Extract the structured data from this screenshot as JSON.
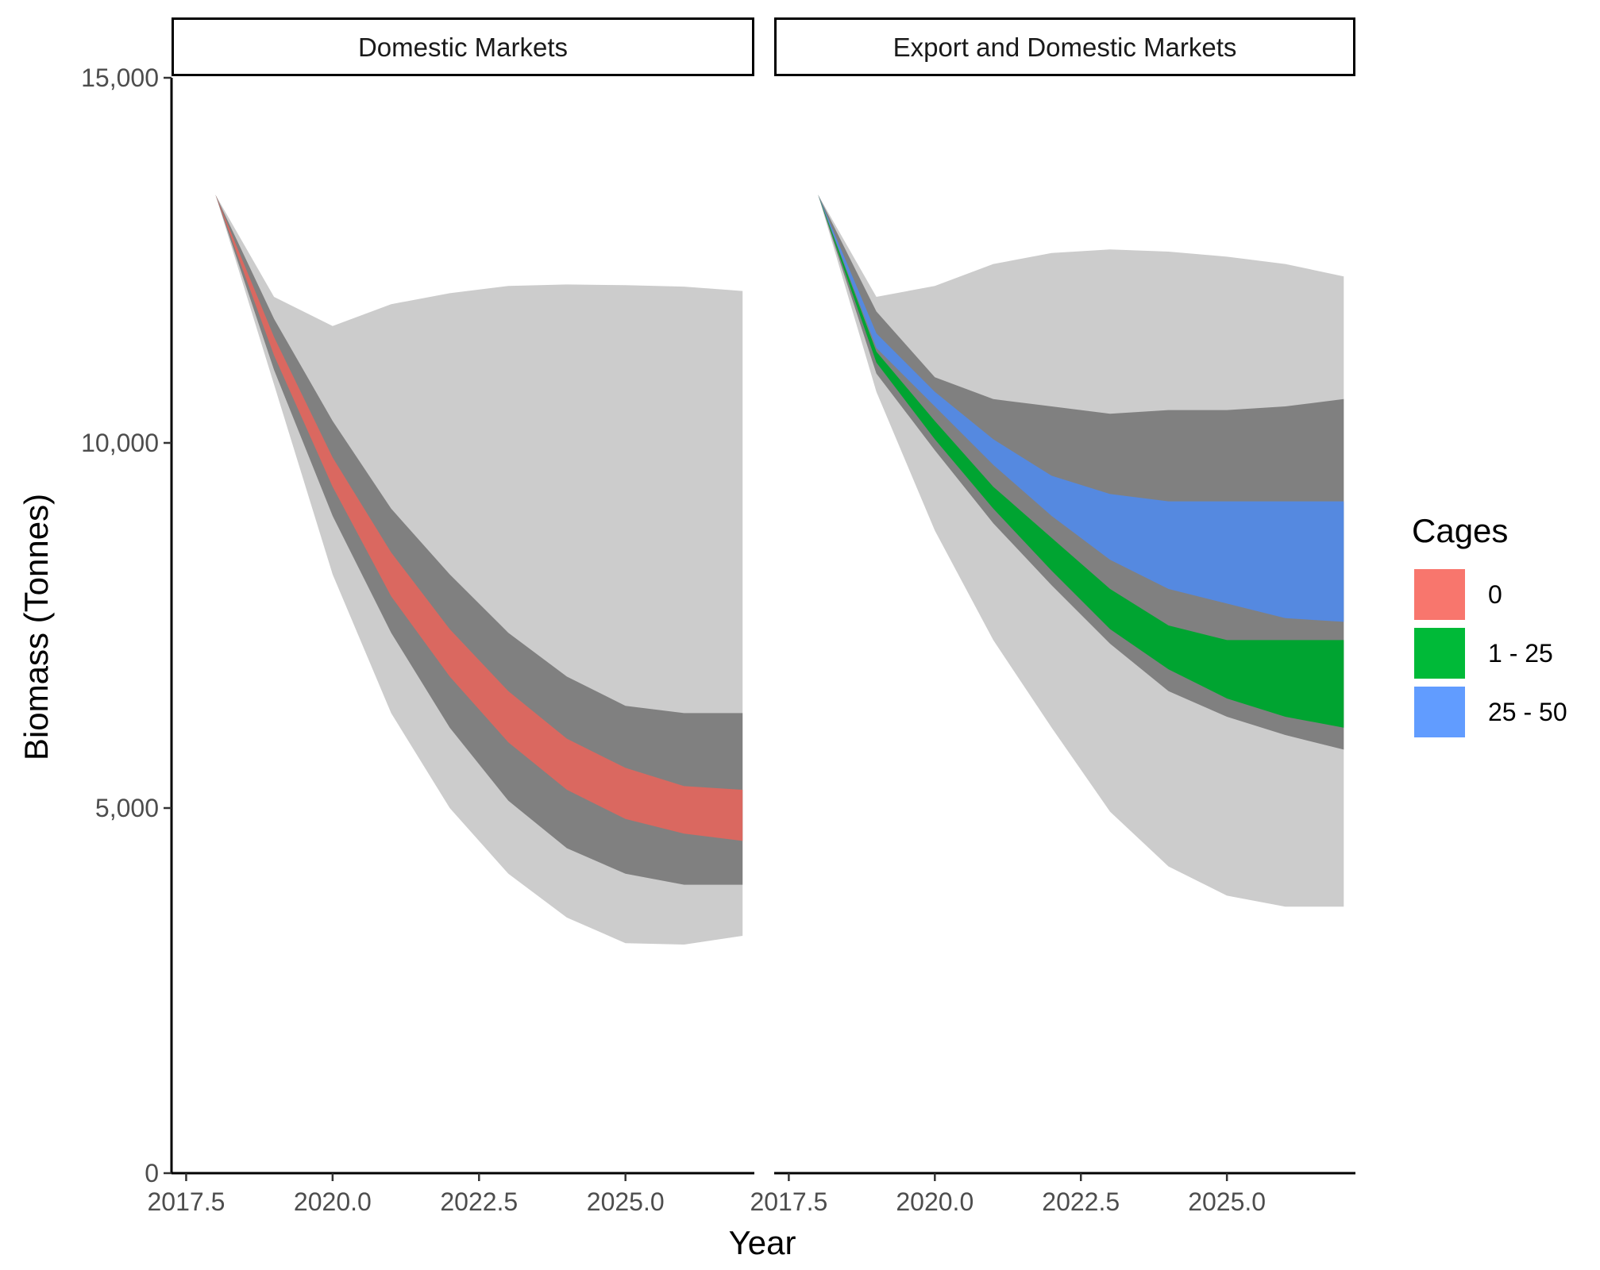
{
  "chart_data": {
    "type": "area",
    "xlabel": "Year",
    "ylabel": "Biomass (Tonnes)",
    "xlim": [
      2017.25,
      2027.2
    ],
    "ylim": [
      0,
      15000
    ],
    "x_ticks": [
      2017.5,
      2020.0,
      2022.5,
      2025.0
    ],
    "x_tick_labels": [
      "2017.5",
      "2020.0",
      "2022.5",
      "2025.0"
    ],
    "y_ticks": [
      0,
      5000,
      10000,
      15000
    ],
    "y_tick_labels": [
      "0",
      "5,000",
      "10,000",
      "15,000"
    ],
    "grid": false,
    "legend": {
      "title": "Cages",
      "placement": "right",
      "entries": [
        {
          "label": "0",
          "color": "#F8766D"
        },
        {
          "label": "1 - 25",
          "color": "#00BA38"
        },
        {
          "label": "25 - 50",
          "color": "#619CFF"
        }
      ]
    },
    "band_colors": {
      "outer": "#cccccc",
      "inner": "#808080"
    },
    "panels": [
      {
        "title": "Domestic Markets",
        "x": [
          2018,
          2019,
          2020,
          2021,
          2022,
          2023,
          2024,
          2025,
          2026,
          2027
        ],
        "outer_band": {
          "upper": [
            13400,
            12000,
            11600,
            11900,
            12050,
            12150,
            12170,
            12160,
            12140,
            12080
          ],
          "lower": [
            13400,
            10800,
            8200,
            6300,
            5000,
            4100,
            3500,
            3150,
            3130,
            3250
          ]
        },
        "inner_band": {
          "upper": [
            13400,
            11700,
            10300,
            9100,
            8200,
            7400,
            6800,
            6400,
            6300,
            6300
          ],
          "lower": [
            13400,
            11000,
            9000,
            7400,
            6100,
            5100,
            4450,
            4100,
            3950,
            3950
          ]
        },
        "series": [
          {
            "name": "0",
            "upper": [
              13400,
              11450,
              9800,
              8500,
              7450,
              6600,
              5950,
              5550,
              5300,
              5250
            ],
            "lower": [
              13400,
              11200,
              9400,
              7900,
              6800,
              5900,
              5250,
              4850,
              4650,
              4550
            ]
          }
        ]
      },
      {
        "title": "Export and Domestic Markets",
        "x": [
          2018,
          2019,
          2020,
          2021,
          2022,
          2023,
          2024,
          2025,
          2026,
          2027
        ],
        "outer_band": {
          "upper": [
            13400,
            12000,
            12150,
            12450,
            12600,
            12650,
            12620,
            12550,
            12450,
            12280
          ],
          "lower": [
            13400,
            10700,
            8800,
            7300,
            6100,
            4950,
            4200,
            3800,
            3650,
            3650
          ]
        },
        "inner_band": {
          "upper": [
            13400,
            11800,
            10900,
            10600,
            10500,
            10400,
            10450,
            10450,
            10500,
            10600
          ],
          "lower": [
            13400,
            10950,
            9900,
            8900,
            8050,
            7250,
            6600,
            6250,
            6000,
            5800
          ]
        },
        "series": [
          {
            "name": "25 - 50",
            "upper": [
              13400,
              11500,
              10700,
              10050,
              9550,
              9300,
              9200,
              9200,
              9200,
              9200
            ],
            "lower": [
              13400,
              11300,
              10500,
              9700,
              9000,
              8400,
              8000,
              7800,
              7600,
              7550
            ]
          },
          {
            "name": "1 - 25",
            "upper": [
              13400,
              11250,
              10300,
              9400,
              8700,
              8000,
              7500,
              7300,
              7300,
              7300
            ],
            "lower": [
              13400,
              11100,
              10050,
              9100,
              8250,
              7450,
              6900,
              6500,
              6250,
              6100
            ]
          }
        ]
      }
    ]
  }
}
